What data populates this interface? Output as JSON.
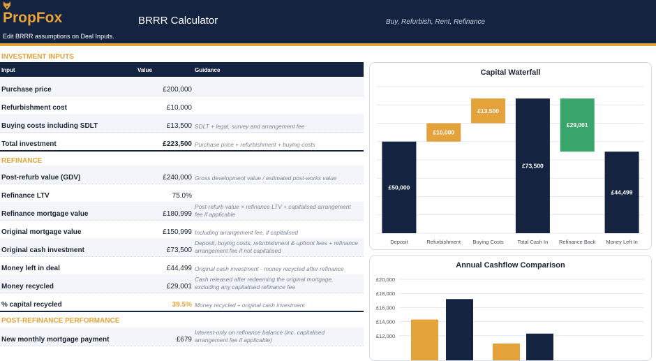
{
  "header": {
    "logo": "PropFox",
    "title": "BRRR Calculator",
    "tagline": "Buy, Refurbish, Rent, Refinance",
    "note": "Edit BRRR assumptions on Deal Inputs."
  },
  "colors": {
    "navy": "#14233f",
    "orange": "#e3a23a",
    "green": "#3aa56a"
  },
  "sections": {
    "investment": "INVESTMENT INPUTS",
    "refinance": "REFINANCE",
    "post": "POST-REFINANCE PERFORMANCE"
  },
  "table_headers": {
    "input": "Input",
    "value": "Value",
    "guidance": "Guidance"
  },
  "investment_rows": [
    {
      "label": "Purchase price",
      "value": "£200,000",
      "note": ""
    },
    {
      "label": "Refurbishment cost",
      "value": "£10,000",
      "note": ""
    },
    {
      "label": "Buying costs including SDLT",
      "value": "£13,500",
      "note": "SDLT + legal, survey and arrangement fee"
    },
    {
      "label": "Total investment",
      "value": "£223,500",
      "note": "Purchase price + refurbishment + buying costs"
    }
  ],
  "refinance_rows": [
    {
      "label": "Post-refurb value (GDV)",
      "value": "£240,000",
      "note": "Gross development value / estimated post-works value"
    },
    {
      "label": "Refinance LTV",
      "value": "75.0%",
      "note": ""
    },
    {
      "label": "Refinance mortgage value",
      "value": "£180,999",
      "note": "Post-refurb value × refinance LTV + capitalised arrangement fee if applicable"
    },
    {
      "label": "Original mortgage value",
      "value": "£150,999",
      "note": "Including arrangement fee, if capitalised"
    },
    {
      "label": "Original cash investment",
      "value": "£73,500",
      "note": "Deposit, buying costs, refurbishment & upfront fees + refinance arrangement fee if not capitalised"
    },
    {
      "label": "Money left in deal",
      "value": "£44,499",
      "note": "Original cash investment - money recycled after refinance"
    },
    {
      "label": "Money recycled",
      "value": "£29,001",
      "note": "Cash released after redeeming the original mortgage, excluding any capitalised refinance fee"
    },
    {
      "label": "% capital recycled",
      "value": "39.5%",
      "note": "Money recycled ÷ original cash investment"
    }
  ],
  "post_rows": [
    {
      "label": "New monthly mortgage payment",
      "value": "£679",
      "note": "Interest-only on refinance balance (inc. capitalised arrangement fee if applicable)"
    }
  ],
  "chart_data": [
    {
      "type": "bar",
      "subtype": "waterfall",
      "title": "Capital Waterfall",
      "categories": [
        "Deposit",
        "Refurbishment",
        "Buying Costs",
        "Total Cash In",
        "Refinance Back",
        "Money Left In"
      ],
      "values": [
        50000,
        10000,
        13500,
        73500,
        -29001,
        44499
      ],
      "bar_kinds": [
        "total",
        "increase",
        "increase",
        "total",
        "decrease",
        "total"
      ],
      "data_labels": [
        "£50,000",
        "£10,000",
        "£13,500",
        "£73,500",
        "£29,001",
        "£44,499"
      ],
      "ylim": [
        0,
        80000
      ],
      "grid": true
    },
    {
      "type": "bar",
      "title": "Annual Cashflow Comparison",
      "ytick_labels": [
        "£20,000",
        "£18,000",
        "£16,000",
        "£14,000",
        "£12,000"
      ],
      "ylim": [
        10000,
        21000
      ],
      "visible_bar_values": [
        14300,
        17200,
        10900,
        12300
      ],
      "bar_colors": [
        "#e3a23a",
        "#14233f",
        "#e3a23a",
        "#14233f"
      ],
      "grid": true
    }
  ]
}
